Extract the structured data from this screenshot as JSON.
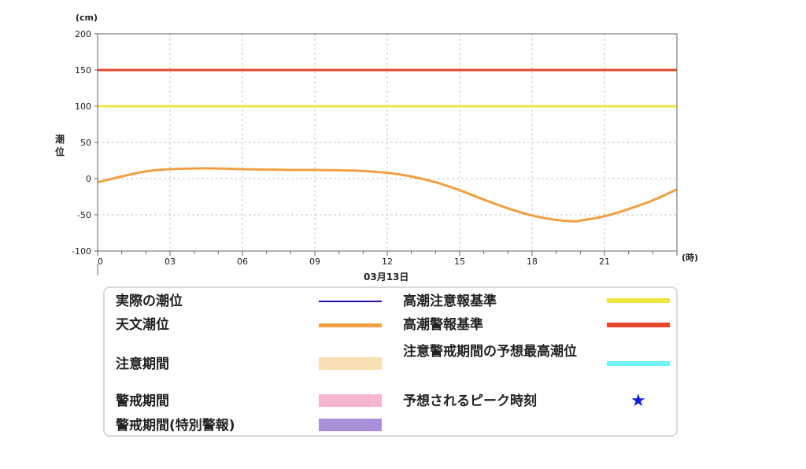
{
  "chart_data": {
    "type": "line",
    "ylabel": "潮位",
    "y_unit": "(cm)",
    "x_unit": "(時)",
    "date_label": "03月13日",
    "ylim": [
      -100,
      200
    ],
    "yticks": [
      200,
      150,
      100,
      50,
      0,
      -50,
      -100
    ],
    "xlim": [
      0,
      24
    ],
    "xticks": [
      "0",
      "03",
      "06",
      "09",
      "12",
      "15",
      "18",
      "21"
    ],
    "grid": true,
    "reference_lines": [
      {
        "name": "高潮警報基準",
        "y": 150,
        "color": "#e8452a"
      },
      {
        "name": "高潮注意報基準",
        "y": 100,
        "color": "#ece542"
      }
    ],
    "series": [
      {
        "name": "天文潮位",
        "color": "#f0a042",
        "x": [
          0,
          1,
          2,
          3,
          4,
          5,
          6,
          7,
          8,
          9,
          10,
          11,
          12,
          13,
          14,
          15,
          16,
          17,
          18,
          19,
          19.7,
          20,
          21,
          22,
          23,
          24
        ],
        "y": [
          -5,
          3,
          10,
          13,
          14,
          14,
          13,
          12.5,
          12,
          12,
          11.5,
          10.5,
          8,
          3,
          -5,
          -16,
          -29,
          -41,
          -51,
          -57,
          -59,
          -58,
          -52,
          -42,
          -30,
          -15
        ]
      }
    ]
  },
  "legend": {
    "items": [
      {
        "label": "実際の潮位",
        "color": "#1f0fa0",
        "kind": "line"
      },
      {
        "label": "高潮注意報基準",
        "color": "#ece542",
        "kind": "bar"
      },
      {
        "label": "天文潮位",
        "color": "#f0a042",
        "kind": "bar"
      },
      {
        "label": "高潮警報基準",
        "color": "#e8452a",
        "kind": "bar"
      },
      {
        "label": "注意期間",
        "color": "#f8dfb4",
        "kind": "block"
      },
      {
        "label": "注意警戒期間の予想最高潮位",
        "color": "#6ff3f5",
        "kind": "bar"
      },
      {
        "label": "警戒期間",
        "color": "#f6b6cf",
        "kind": "block"
      },
      {
        "label": "予想されるピーク時刻",
        "color": "#0a1ee0",
        "kind": "star",
        "symbol": "★"
      },
      {
        "label": "警戒期間(特別警報)",
        "color": "#a98fd8",
        "kind": "block"
      }
    ]
  }
}
